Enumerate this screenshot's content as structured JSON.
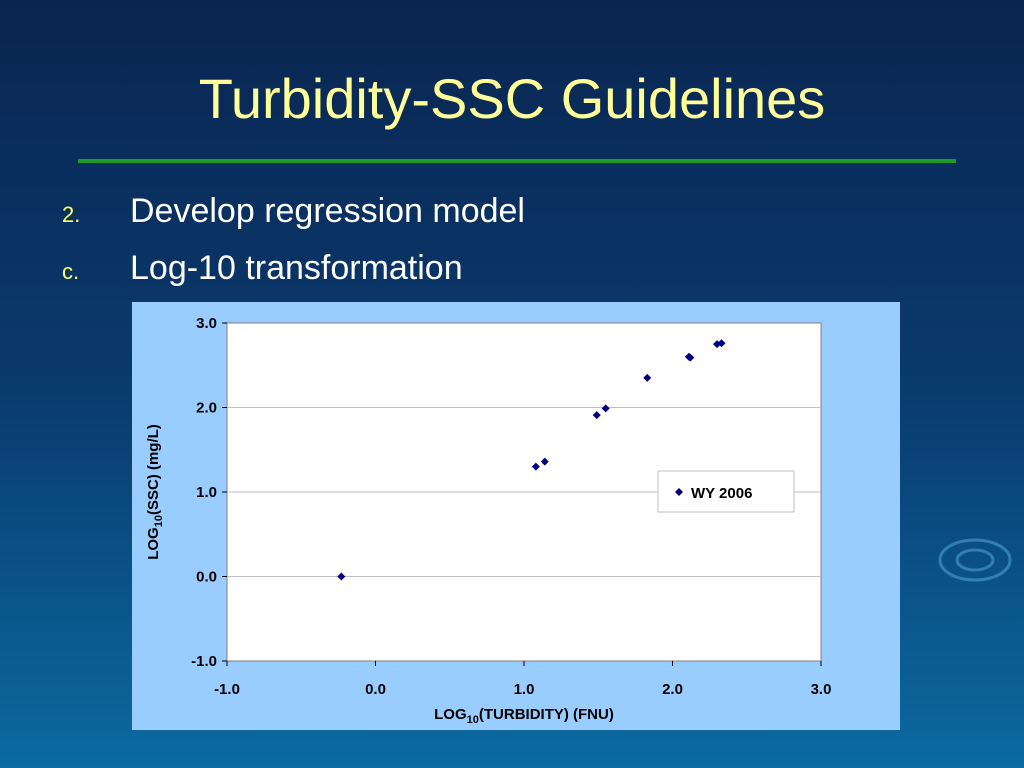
{
  "slide": {
    "title": "Turbidity-SSC Guidelines",
    "bullets": [
      {
        "marker": "2.",
        "text": "Develop regression model"
      },
      {
        "marker": "c.",
        "text": "Log-10 transformation"
      }
    ]
  },
  "chart_data": {
    "type": "scatter",
    "xlabel": [
      "LOG",
      "10",
      "(TURBIDITY) (FNU)"
    ],
    "ylabel": [
      "LOG",
      "10",
      "(SSC) (mg/L)"
    ],
    "series": [
      {
        "name": "WY 2006",
        "color": "#000080",
        "x": [
          -0.23,
          1.08,
          1.14,
          1.49,
          1.55,
          1.83,
          2.11,
          2.12,
          2.3,
          2.33
        ],
        "values": [
          0.0,
          1.3,
          1.36,
          1.91,
          1.99,
          2.35,
          2.6,
          2.59,
          2.75,
          2.76
        ]
      }
    ],
    "xlim": [
      -1,
      3
    ],
    "ylim": [
      -1,
      3
    ],
    "xticks": [
      {
        "value": -1,
        "label": "-1.0"
      },
      {
        "value": 0,
        "label": "0.0"
      },
      {
        "value": 1,
        "label": "1.0"
      },
      {
        "value": 2,
        "label": "2.0"
      },
      {
        "value": 3,
        "label": "3.0"
      }
    ],
    "yticks": [
      {
        "value": -1,
        "label": "-1.0"
      },
      {
        "value": 0,
        "label": "0.0"
      },
      {
        "value": 1,
        "label": "1.0"
      },
      {
        "value": 2,
        "label": "2.0"
      },
      {
        "value": 3,
        "label": "3.0"
      }
    ],
    "grid": true,
    "legend": "right"
  }
}
